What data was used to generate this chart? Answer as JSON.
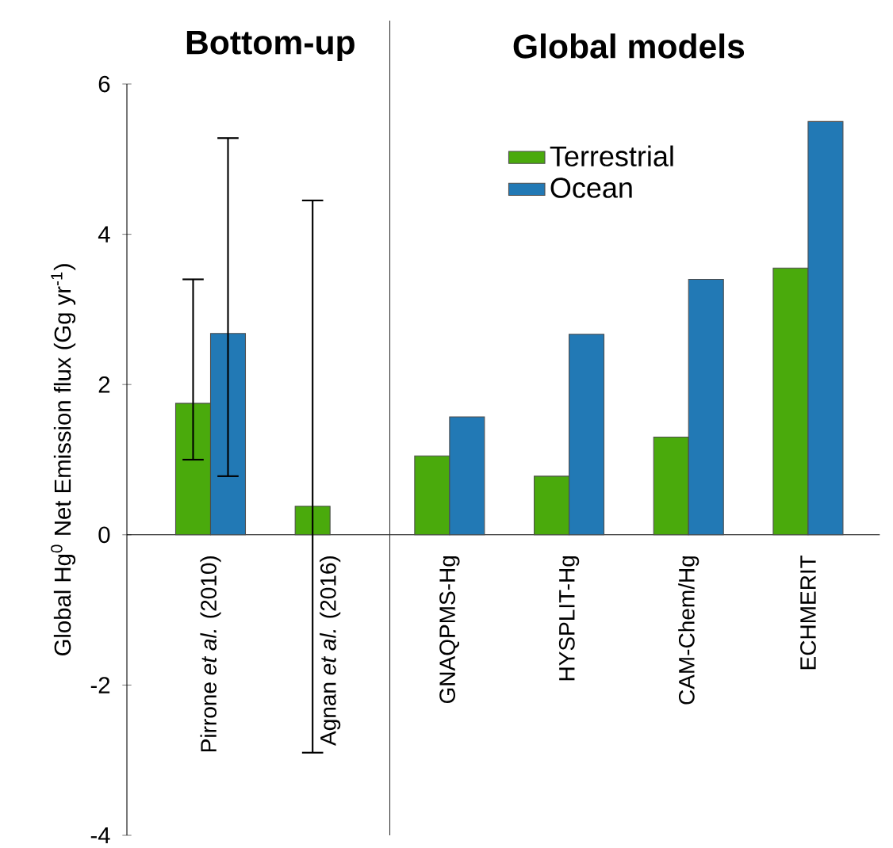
{
  "chart_data": {
    "type": "bar",
    "ylabel": "Global Hg$^{0}$ Net Emission flux (Gg yr$^{-1}$)",
    "annotations": [
      "Bottom-up",
      "Global models"
    ],
    "categories": [
      "Pirrone *et al.* (2010)",
      "Agnan *et al.* (2016)",
      "GNAQPMS-Hg",
      "HYSPLIT-Hg",
      "CAM-Chem/Hg",
      "ECHMERIT"
    ],
    "series": [
      {
        "name": "Terrestrial",
        "color": "#4aaa0c",
        "values": [
          1.75,
          0.38,
          1.05,
          0.78,
          1.3,
          3.55
        ],
        "errors": [
          [
            1.0,
            3.4
          ],
          [
            -2.9,
            4.45
          ],
          null,
          null,
          null,
          null
        ]
      },
      {
        "name": "Ocean",
        "color": "#2279b5",
        "values": [
          2.68,
          null,
          1.57,
          2.67,
          3.4,
          5.5
        ],
        "errors": [
          [
            0.78,
            5.28
          ],
          null,
          null,
          null,
          null,
          null
        ]
      }
    ],
    "ylim": [
      -4,
      6
    ],
    "yticks": [
      -4,
      -2,
      0,
      2,
      4,
      6
    ],
    "legend": "top"
  }
}
